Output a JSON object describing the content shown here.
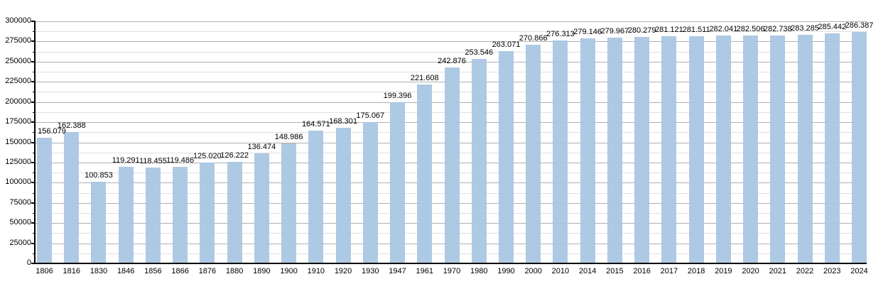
{
  "chart_data": {
    "type": "bar",
    "title": "",
    "xlabel": "",
    "ylabel": "",
    "categories": [
      "1806",
      "1816",
      "1830",
      "1846",
      "1856",
      "1866",
      "1876",
      "1880",
      "1890",
      "1900",
      "1910",
      "1920",
      "1930",
      "1947",
      "1961",
      "1970",
      "1980",
      "1990",
      "2000",
      "2010",
      "2014",
      "2015",
      "2016",
      "2017",
      "2018",
      "2019",
      "2020",
      "2021",
      "2022",
      "2023",
      "2024"
    ],
    "values": [
      156079,
      162388,
      100853,
      119291,
      118455,
      119486,
      125020,
      126222,
      136474,
      148986,
      164571,
      168301,
      175067,
      199396,
      221608,
      242876,
      253546,
      263071,
      270866,
      276313,
      279146,
      279967,
      280279,
      281121,
      281511,
      282041,
      282506,
      282738,
      283285,
      285442,
      286387
    ],
    "value_labels": [
      "156.079",
      "162.388",
      "100.853",
      "119.291",
      "118.455",
      "119.486",
      "125.020",
      "126.222",
      "136.474",
      "148.986",
      "164.571",
      "168.301",
      "175.067",
      "199.396",
      "221.608",
      "242.876",
      "253.546",
      "263.071",
      "270.866",
      "276.313",
      "279.146",
      "279.967",
      "280.279",
      "281.121",
      "281.511",
      "282.041",
      "282.506",
      "282.738",
      "283.285",
      "285.442",
      "286.387"
    ],
    "ylim": [
      0,
      300000
    ],
    "y_major_step": 25000,
    "y_minor_step": 12500,
    "y_tick_labels": [
      "0",
      "25000",
      "50000",
      "75000",
      "100000",
      "125000",
      "150000",
      "175000",
      "200000",
      "225000",
      "250000",
      "275000",
      "300000"
    ],
    "grid": "on",
    "legend_position": "none",
    "colors": {
      "bar": "#aac6e2",
      "major_grid": "#b0b0b0",
      "minor_grid": "#e0e0e0",
      "axis": "#000000",
      "text": "#000000"
    }
  }
}
